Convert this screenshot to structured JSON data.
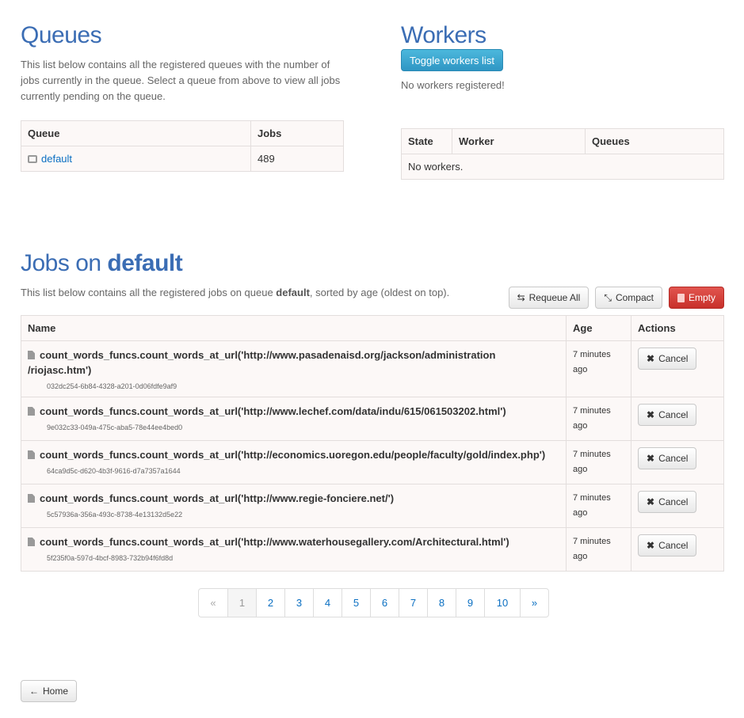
{
  "queues": {
    "title": "Queues",
    "description": "This list below contains all the registered queues with the number of jobs currently in the queue. Select a queue from above to view all jobs currently pending on the queue.",
    "headers": [
      "Queue",
      "Jobs"
    ],
    "rows": [
      {
        "name": "default",
        "jobs": "489"
      }
    ]
  },
  "workers": {
    "title": "Workers",
    "toggle_label": "Toggle workers list",
    "status": "No workers registered!",
    "headers": [
      "State",
      "Worker",
      "Queues"
    ],
    "empty": "No workers."
  },
  "jobs": {
    "title_prefix": "Jobs on ",
    "queue": "default",
    "desc_pre": "This list below contains all the registered jobs on queue ",
    "desc_queue": "default",
    "desc_post": ", sorted by age (oldest on top).",
    "requeue_label": "Requeue All",
    "compact_label": "Compact",
    "empty_label": "Empty",
    "headers": [
      "Name",
      "Age",
      "Actions"
    ],
    "rows": [
      {
        "name": "count_words_funcs.count_words_at_url('http://www.pasadenaisd.org/jackson/administration /riojasc.htm')",
        "id": "032dc254-6b84-4328-a201-0d06fdfe9af9",
        "age": "7 minutes ago",
        "action": "Cancel"
      },
      {
        "name": "count_words_funcs.count_words_at_url('http://www.lechef.com/data/indu/615/061503202.html')",
        "id": "9e032c33-049a-475c-aba5-78e44ee4bed0",
        "age": "7 minutes ago",
        "action": "Cancel"
      },
      {
        "name": "count_words_funcs.count_words_at_url('http://economics.uoregon.edu/people/faculty/gold/index.php')",
        "id": "64ca9d5c-d620-4b3f-9616-d7a7357a1644",
        "age": "7 minutes ago",
        "action": "Cancel"
      },
      {
        "name": "count_words_funcs.count_words_at_url('http://www.regie-fonciere.net/')",
        "id": "5c57936a-356a-493c-8738-4e13132d5e22",
        "age": "7 minutes ago",
        "action": "Cancel"
      },
      {
        "name": "count_words_funcs.count_words_at_url('http://www.waterhousegallery.com/Architectural.html')",
        "id": "5f235f0a-597d-4bcf-8983-732b94f6fd8d",
        "age": "7 minutes ago",
        "action": "Cancel"
      }
    ]
  },
  "pagination": {
    "prev": "«",
    "pages": [
      "1",
      "2",
      "3",
      "4",
      "5",
      "6",
      "7",
      "8",
      "9",
      "10"
    ],
    "current": "1",
    "next": "»"
  },
  "home_label": "Home"
}
